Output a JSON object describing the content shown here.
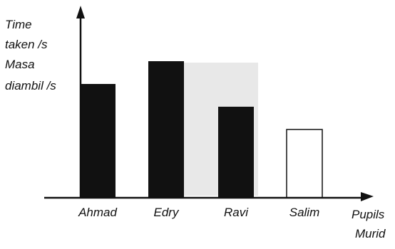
{
  "chart_data": {
    "type": "bar",
    "categories": [
      "Ahmad",
      "Edry",
      "Ravi",
      "Salim"
    ],
    "values": [
      5,
      6,
      4,
      3
    ],
    "filled": [
      true,
      true,
      true,
      false
    ],
    "ylabel": [
      "Time",
      "taken /s",
      "Masa",
      "diambil /s"
    ],
    "xlabel": [
      "Pupils",
      "Murid"
    ],
    "ylim": [
      0,
      8
    ],
    "grid": false,
    "y_ticks_shown": false
  },
  "colors": {
    "bar_fill": "#111111",
    "bar_outline": "#111111",
    "empty_bar_fill": "#ffffff",
    "axis": "#111111",
    "scan_shading": "#e8e8e8"
  }
}
